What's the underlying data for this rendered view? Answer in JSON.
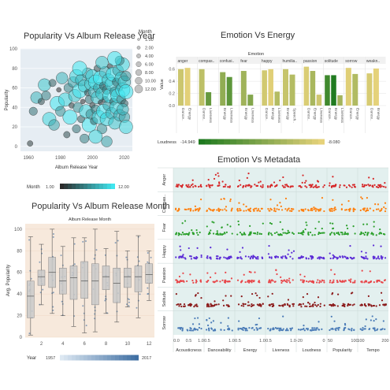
{
  "chart_data": [
    {
      "id": "pop_vs_year",
      "type": "scatter",
      "title": "Popularity Vs Album Release Year",
      "xlabel": "Album Release Year",
      "ylabel": "Popularity",
      "xlim": [
        1955,
        2025
      ],
      "ylim": [
        -5,
        100
      ],
      "xticks": [
        "1960",
        "1980",
        "2000",
        "2020"
      ],
      "yticks": [
        "0",
        "20",
        "40",
        "60",
        "80",
        "100"
      ],
      "size_legend": {
        "title": "Month",
        "entries": [
          "1.00",
          "2.00",
          "4.00",
          "6.00",
          "8.00",
          "10.00",
          "12.00"
        ]
      },
      "color_legend": {
        "title": "Month",
        "min": "1.00",
        "max": "12.00"
      },
      "points": [
        {
          "x": 1961,
          "y": 3,
          "m": 2
        },
        {
          "x": 1963,
          "y": 36,
          "m": 5
        },
        {
          "x": 1965,
          "y": 50,
          "m": 9
        },
        {
          "x": 1968,
          "y": 46,
          "m": 3
        },
        {
          "x": 1970,
          "y": 63,
          "m": 10
        },
        {
          "x": 1971,
          "y": 52,
          "m": 6
        },
        {
          "x": 1973,
          "y": 28,
          "m": 11
        },
        {
          "x": 1975,
          "y": 65,
          "m": 4
        },
        {
          "x": 1976,
          "y": 22,
          "m": 8
        },
        {
          "x": 1978,
          "y": 44,
          "m": 12
        },
        {
          "x": 1979,
          "y": 58,
          "m": 1
        },
        {
          "x": 1980,
          "y": 36,
          "m": 7
        },
        {
          "x": 1981,
          "y": 70,
          "m": 9
        },
        {
          "x": 1983,
          "y": 48,
          "m": 11
        },
        {
          "x": 1984,
          "y": 12,
          "m": 3
        },
        {
          "x": 1985,
          "y": 60,
          "m": 6
        },
        {
          "x": 1986,
          "y": 30,
          "m": 12
        },
        {
          "x": 1987,
          "y": 42,
          "m": 2
        },
        {
          "x": 1988,
          "y": 66,
          "m": 8
        },
        {
          "x": 1989,
          "y": 52,
          "m": 10
        },
        {
          "x": 1990,
          "y": 18,
          "m": 5
        },
        {
          "x": 1990,
          "y": 72,
          "m": 11
        },
        {
          "x": 1991,
          "y": 40,
          "m": 7
        },
        {
          "x": 1992,
          "y": 57,
          "m": 12
        },
        {
          "x": 1993,
          "y": 28,
          "m": 4
        },
        {
          "x": 1993,
          "y": 68,
          "m": 9
        },
        {
          "x": 1994,
          "y": 46,
          "m": 1
        },
        {
          "x": 1995,
          "y": 62,
          "m": 10
        },
        {
          "x": 1995,
          "y": 8,
          "m": 6
        },
        {
          "x": 1996,
          "y": 36,
          "m": 11
        },
        {
          "x": 1997,
          "y": 55,
          "m": 3
        },
        {
          "x": 1997,
          "y": 75,
          "m": 8
        },
        {
          "x": 1998,
          "y": 22,
          "m": 12
        },
        {
          "x": 1998,
          "y": 48,
          "m": 5
        },
        {
          "x": 1999,
          "y": 64,
          "m": 10
        },
        {
          "x": 1999,
          "y": 33,
          "m": 7
        },
        {
          "x": 2000,
          "y": 42,
          "m": 2
        },
        {
          "x": 2000,
          "y": 72,
          "m": 11
        },
        {
          "x": 2001,
          "y": 56,
          "m": 9
        },
        {
          "x": 2001,
          "y": 26,
          "m": 4
        },
        {
          "x": 2002,
          "y": 66,
          "m": 12
        },
        {
          "x": 2002,
          "y": 38,
          "m": 6
        },
        {
          "x": 2003,
          "y": 50,
          "m": 10
        },
        {
          "x": 2003,
          "y": 80,
          "m": 3
        },
        {
          "x": 2004,
          "y": 30,
          "m": 11
        },
        {
          "x": 2004,
          "y": 60,
          "m": 8
        },
        {
          "x": 2005,
          "y": 45,
          "m": 1
        },
        {
          "x": 2005,
          "y": 70,
          "m": 12
        },
        {
          "x": 2006,
          "y": 18,
          "m": 7
        },
        {
          "x": 2006,
          "y": 54,
          "m": 10
        },
        {
          "x": 2007,
          "y": 62,
          "m": 5
        },
        {
          "x": 2007,
          "y": 36,
          "m": 12
        },
        {
          "x": 2008,
          "y": 76,
          "m": 9
        },
        {
          "x": 2008,
          "y": 48,
          "m": 3
        },
        {
          "x": 2009,
          "y": 28,
          "m": 11
        },
        {
          "x": 2009,
          "y": 58,
          "m": 6
        },
        {
          "x": 2010,
          "y": 68,
          "m": 10
        },
        {
          "x": 2010,
          "y": 42,
          "m": 8
        },
        {
          "x": 2011,
          "y": 52,
          "m": 12
        },
        {
          "x": 2011,
          "y": 82,
          "m": 2
        },
        {
          "x": 2012,
          "y": 34,
          "m": 9
        },
        {
          "x": 2012,
          "y": 64,
          "m": 11
        },
        {
          "x": 2013,
          "y": 46,
          "m": 4
        },
        {
          "x": 2013,
          "y": 74,
          "m": 12
        },
        {
          "x": 2014,
          "y": 56,
          "m": 7
        },
        {
          "x": 2014,
          "y": 24,
          "m": 10
        },
        {
          "x": 2015,
          "y": 66,
          "m": 5
        },
        {
          "x": 2015,
          "y": 40,
          "m": 11
        },
        {
          "x": 2016,
          "y": 78,
          "m": 8
        },
        {
          "x": 2016,
          "y": 52,
          "m": 12
        },
        {
          "x": 2017,
          "y": 60,
          "m": 3
        },
        {
          "x": 2017,
          "y": 32,
          "m": 9
        },
        {
          "x": 2018,
          "y": 70,
          "m": 10
        },
        {
          "x": 2018,
          "y": 48,
          "m": 6
        },
        {
          "x": 2019,
          "y": 58,
          "m": 12
        },
        {
          "x": 2019,
          "y": 84,
          "m": 11
        },
        {
          "x": 2020,
          "y": 44,
          "m": 4
        },
        {
          "x": 2020,
          "y": 66,
          "m": 10
        },
        {
          "x": 2020,
          "y": 30,
          "m": 8
        },
        {
          "x": 2021,
          "y": 56,
          "m": 12
        },
        {
          "x": 2021,
          "y": 72,
          "m": 7
        },
        {
          "x": 2021,
          "y": 20,
          "m": 11
        },
        {
          "x": 2019,
          "y": 38,
          "m": 9
        },
        {
          "x": 2017,
          "y": 88,
          "m": 6
        },
        {
          "x": 2014,
          "y": 90,
          "m": 12
        },
        {
          "x": 2006,
          "y": 86,
          "m": 10
        },
        {
          "x": 1992,
          "y": 80,
          "m": 12
        },
        {
          "x": 2009,
          "y": 5,
          "m": 8
        },
        {
          "x": 2002,
          "y": 10,
          "m": 11
        }
      ]
    },
    {
      "id": "emotion_vs_energy",
      "type": "bar",
      "title": "Emotion Vs Energy",
      "header": "Emotion",
      "ylabel": "Value",
      "ylim": [
        0,
        0.7
      ],
      "yticks": [
        "0.0",
        "0.2",
        "0.4",
        "0.6"
      ],
      "groups": [
        "anger",
        "compas..",
        "confusi..",
        "fear",
        "happy",
        "humilia..",
        "passion",
        "solitude",
        "sorrow",
        "weakn.."
      ],
      "metric_labels": [
        "Dance..",
        "Energy",
        "Liveness",
        "Speech.."
      ],
      "bars": [
        {
          "group": 0,
          "label": "Dance..",
          "value": 0.6,
          "loud": -9.0
        },
        {
          "group": 0,
          "label": "Energy",
          "value": 0.62,
          "loud": -8.2
        },
        {
          "group": 1,
          "label": "Dance..",
          "value": 0.6,
          "loud": -9.5
        },
        {
          "group": 1,
          "label": "Liveness",
          "value": 0.22,
          "loud": -12.5
        },
        {
          "group": 2,
          "label": "Energy",
          "value": 0.55,
          "loud": -11.0
        },
        {
          "group": 2,
          "label": "Liveness",
          "value": 0.47,
          "loud": -12.8
        },
        {
          "group": 3,
          "label": "Energy",
          "value": 0.57,
          "loud": -10.5
        },
        {
          "group": 3,
          "label": "Liveness",
          "value": 0.18,
          "loud": -11.5
        },
        {
          "group": 4,
          "label": "Dance..",
          "value": 0.58,
          "loud": -8.8
        },
        {
          "group": 4,
          "label": "Energy",
          "value": 0.6,
          "loud": -8.3
        },
        {
          "group": 4,
          "label": "Liveness",
          "value": 0.23,
          "loud": -9.8
        },
        {
          "group": 5,
          "label": "Energy",
          "value": 0.6,
          "loud": -9.2
        },
        {
          "group": 5,
          "label": "Speech..",
          "value": 0.51,
          "loud": -9.8
        },
        {
          "group": 6,
          "label": "Dance..",
          "value": 0.64,
          "loud": -8.5
        },
        {
          "group": 6,
          "label": "Energy",
          "value": 0.57,
          "loud": -10.2
        },
        {
          "group": 6,
          "label": "Liveness",
          "value": 0.18,
          "loud": -8.9
        },
        {
          "group": 7,
          "label": "Dance..",
          "value": 0.5,
          "loud": -13.8
        },
        {
          "group": 7,
          "label": "Energy",
          "value": 0.5,
          "loud": -14.9
        },
        {
          "group": 7,
          "label": "Liveness",
          "value": 0.17,
          "loud": -10.4
        },
        {
          "group": 8,
          "label": "Dance..",
          "value": 0.62,
          "loud": -8.3
        },
        {
          "group": 8,
          "label": "Energy",
          "value": 0.52,
          "loud": -9.9
        },
        {
          "group": 9,
          "label": "Dance..",
          "value": 0.53,
          "loud": -8.6
        },
        {
          "group": 9,
          "label": "Energy",
          "value": 0.61,
          "loud": -8.1
        }
      ],
      "color_legend": {
        "title": "Loudness",
        "min": "-14.949",
        "max": "-8.080",
        "min_value": -14.949,
        "max_value": -8.08
      }
    },
    {
      "id": "emotion_vs_metadata",
      "type": "scatter",
      "title": "Emotion Vs Metadata",
      "rows": [
        "Anger",
        "Compas..",
        "Fear",
        "Happy",
        "Passion",
        "Solitude",
        "Sorrow"
      ],
      "row_colors": [
        "#d62728",
        "#ff7f0e",
        "#2ca02c",
        "#5b2bd6",
        "#e8474a",
        "#8b1a1a",
        "#4a7bb7"
      ],
      "columns": [
        {
          "label": "Acousticness",
          "ticks": [
            "0.0",
            "0.5",
            "1.0"
          ]
        },
        {
          "label": "Danceability",
          "ticks": [
            "0.5",
            "1.0"
          ]
        },
        {
          "label": "Energy",
          "ticks": [
            "0.5",
            "1.0"
          ]
        },
        {
          "label": "Liveness",
          "ticks": [
            "0.5",
            "1.0"
          ]
        },
        {
          "label": "Loudness",
          "ticks": [
            "-20",
            "0"
          ]
        },
        {
          "label": "Popularity",
          "ticks": [
            "50",
            "100"
          ]
        },
        {
          "label": "Tempo",
          "ticks": [
            "100",
            "200"
          ]
        }
      ]
    },
    {
      "id": "pop_vs_month",
      "type": "box",
      "title": "Popularity Vs Album Release Month",
      "xlabel": "Album Release Month",
      "ylabel": "Avg. Popularity",
      "ylim": [
        0,
        105
      ],
      "xticks": [
        "2",
        "4",
        "6",
        "8",
        "10",
        "12"
      ],
      "yticks": [
        "0",
        "20",
        "40",
        "60",
        "80",
        "100"
      ],
      "boxes": [
        {
          "month": 1,
          "min": 2,
          "q1": 18,
          "med": 38,
          "q3": 52,
          "max": 93
        },
        {
          "month": 2,
          "min": 30,
          "q1": 48,
          "med": 56,
          "q3": 62,
          "max": 86
        },
        {
          "month": 3,
          "min": 22,
          "q1": 46,
          "med": 60,
          "q3": 74,
          "max": 100
        },
        {
          "month": 4,
          "min": 20,
          "q1": 40,
          "med": 52,
          "q3": 64,
          "max": 84
        },
        {
          "month": 5,
          "min": 10,
          "q1": 35,
          "med": 55,
          "q3": 66,
          "max": 92
        },
        {
          "month": 6,
          "min": 4,
          "q1": 36,
          "med": 52,
          "q3": 70,
          "max": 92
        },
        {
          "month": 7,
          "min": 5,
          "q1": 30,
          "med": 52,
          "q3": 68,
          "max": 100
        },
        {
          "month": 8,
          "min": 22,
          "q1": 44,
          "med": 56,
          "q3": 66,
          "max": 82
        },
        {
          "month": 9,
          "min": 14,
          "q1": 32,
          "med": 50,
          "q3": 64,
          "max": 98
        },
        {
          "month": 10,
          "min": 28,
          "q1": 46,
          "med": 56,
          "q3": 64,
          "max": 80
        },
        {
          "month": 11,
          "min": 18,
          "q1": 42,
          "med": 56,
          "q3": 66,
          "max": 94
        },
        {
          "month": 12,
          "min": 34,
          "q1": 50,
          "med": 58,
          "q3": 68,
          "max": 80
        }
      ],
      "color_legend": {
        "title": "Year",
        "min": "1957",
        "max": "2017"
      }
    }
  ]
}
